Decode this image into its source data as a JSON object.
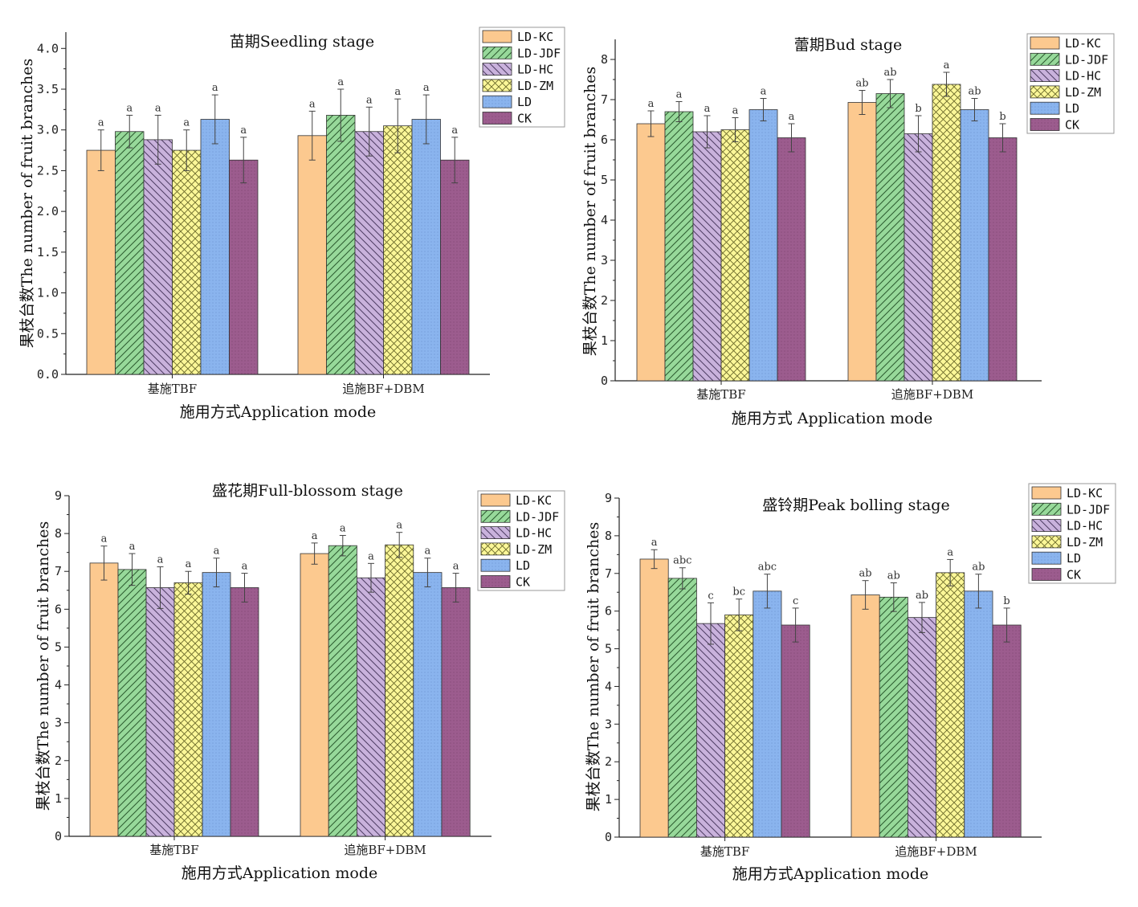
{
  "chart_data": [
    {
      "type": "bar",
      "title": "苗期Seedling stage",
      "xlabel": "施用方式Application mode",
      "ylabel": "果枝台数The number of fruit branches",
      "ylim": [
        0,
        4.2
      ],
      "yticks": [
        "0.0",
        "0.5",
        "1.0",
        "1.5",
        "2.0",
        "2.5",
        "3.0",
        "3.5",
        "4.0"
      ],
      "categories": [
        "基施TBF",
        "追施BF+DBM"
      ],
      "legend_position": "top-right",
      "series": [
        {
          "name": "LD-KC",
          "values": [
            2.75,
            2.93
          ],
          "errors": [
            0.25,
            0.3
          ],
          "labels": [
            "a",
            "a"
          ]
        },
        {
          "name": "LD-JDF",
          "values": [
            2.98,
            3.18
          ],
          "errors": [
            0.2,
            0.32
          ],
          "labels": [
            "a",
            "a"
          ]
        },
        {
          "name": "LD-HC",
          "values": [
            2.88,
            2.98
          ],
          "errors": [
            0.3,
            0.3
          ],
          "labels": [
            "a",
            "a"
          ]
        },
        {
          "name": "LD-ZM",
          "values": [
            2.75,
            3.05
          ],
          "errors": [
            0.25,
            0.33
          ],
          "labels": [
            "a",
            "a"
          ]
        },
        {
          "name": "LD",
          "values": [
            3.13,
            3.13
          ],
          "errors": [
            0.3,
            0.3
          ],
          "labels": [
            "a",
            "a"
          ]
        },
        {
          "name": "CK",
          "values": [
            2.63,
            2.63
          ],
          "errors": [
            0.28,
            0.28
          ],
          "labels": [
            "a",
            "a"
          ]
        }
      ]
    },
    {
      "type": "bar",
      "title": "蕾期Bud stage",
      "xlabel": "施用方式 Application mode",
      "ylabel": "果枝台数The number of fruit branches",
      "ylim": [
        0,
        8.5
      ],
      "yticks": [
        "0",
        "1",
        "2",
        "3",
        "4",
        "5",
        "6",
        "7",
        "8"
      ],
      "categories": [
        "基施TBF",
        "追施BF+DBM"
      ],
      "legend_position": "top-right",
      "series": [
        {
          "name": "LD-KC",
          "values": [
            6.4,
            6.93
          ],
          "errors": [
            0.32,
            0.3
          ],
          "labels": [
            "a",
            "ab"
          ]
        },
        {
          "name": "LD-JDF",
          "values": [
            6.7,
            7.15
          ],
          "errors": [
            0.25,
            0.35
          ],
          "labels": [
            "a",
            "ab"
          ]
        },
        {
          "name": "LD-HC",
          "values": [
            6.2,
            6.15
          ],
          "errors": [
            0.4,
            0.45
          ],
          "labels": [
            "a",
            "b"
          ]
        },
        {
          "name": "LD-ZM",
          "values": [
            6.25,
            7.38
          ],
          "errors": [
            0.3,
            0.3
          ],
          "labels": [
            "a",
            "a"
          ]
        },
        {
          "name": "LD",
          "values": [
            6.75,
            6.75
          ],
          "errors": [
            0.28,
            0.28
          ],
          "labels": [
            "a",
            "ab"
          ]
        },
        {
          "name": "CK",
          "values": [
            6.05,
            6.05
          ],
          "errors": [
            0.35,
            0.35
          ],
          "labels": [
            "a",
            "b"
          ]
        }
      ]
    },
    {
      "type": "bar",
      "title": "盛花期Full-blossom stage",
      "xlabel": "施用方式Application mode",
      "ylabel": "果枝台数The number of fruit branches",
      "ylim": [
        0,
        9
      ],
      "yticks": [
        "0",
        "1",
        "2",
        "3",
        "4",
        "5",
        "6",
        "7",
        "8",
        "9"
      ],
      "categories": [
        "基施TBF",
        "追施BF+DBM"
      ],
      "legend_position": "top-right",
      "series": [
        {
          "name": "LD-KC",
          "values": [
            7.22,
            7.47
          ],
          "errors": [
            0.45,
            0.28
          ],
          "labels": [
            "a",
            "a"
          ]
        },
        {
          "name": "LD-JDF",
          "values": [
            7.05,
            7.68
          ],
          "errors": [
            0.42,
            0.27
          ],
          "labels": [
            "a",
            "a"
          ]
        },
        {
          "name": "LD-HC",
          "values": [
            6.57,
            6.83
          ],
          "errors": [
            0.55,
            0.38
          ],
          "labels": [
            "a",
            "a"
          ]
        },
        {
          "name": "LD-ZM",
          "values": [
            6.7,
            7.7
          ],
          "errors": [
            0.3,
            0.33
          ],
          "labels": [
            "a",
            "a"
          ]
        },
        {
          "name": "LD",
          "values": [
            6.97,
            6.97
          ],
          "errors": [
            0.38,
            0.38
          ],
          "labels": [
            "a",
            "a"
          ]
        },
        {
          "name": "CK",
          "values": [
            6.57,
            6.57
          ],
          "errors": [
            0.38,
            0.38
          ],
          "labels": [
            "a",
            "a"
          ]
        }
      ]
    },
    {
      "type": "bar",
      "title": "盛铃期Peak bolling stage",
      "xlabel": "施用方式Application mode",
      "ylabel": "果枝台数The number of fruit branches",
      "ylim": [
        0,
        9
      ],
      "yticks": [
        "0",
        "1",
        "2",
        "3",
        "4",
        "5",
        "6",
        "7",
        "8",
        "9"
      ],
      "categories": [
        "基施TBF",
        "追施BF+DBM"
      ],
      "legend_position": "top-right",
      "series": [
        {
          "name": "LD-KC",
          "values": [
            7.38,
            6.43
          ],
          "errors": [
            0.25,
            0.38
          ],
          "labels": [
            "a",
            "ab"
          ]
        },
        {
          "name": "LD-JDF",
          "values": [
            6.87,
            6.37
          ],
          "errors": [
            0.28,
            0.38
          ],
          "labels": [
            "abc",
            "ab"
          ]
        },
        {
          "name": "LD-HC",
          "values": [
            5.67,
            5.83
          ],
          "errors": [
            0.55,
            0.4
          ],
          "labels": [
            "c",
            "ab"
          ]
        },
        {
          "name": "LD-ZM",
          "values": [
            5.9,
            7.02
          ],
          "errors": [
            0.42,
            0.35
          ],
          "labels": [
            "bc",
            "a"
          ]
        },
        {
          "name": "LD",
          "values": [
            6.53,
            6.53
          ],
          "errors": [
            0.45,
            0.45
          ],
          "labels": [
            "abc",
            "ab"
          ]
        },
        {
          "name": "CK",
          "values": [
            5.63,
            5.63
          ],
          "errors": [
            0.45,
            0.45
          ],
          "labels": [
            "c",
            "b"
          ]
        }
      ]
    }
  ],
  "colors": {
    "LD-KC": "#fcc98f",
    "LD-JDF": "#97d99a",
    "LD-HC": "#c9b2dc",
    "LD-ZM": "#fbf798",
    "LD": "#8ab4ee",
    "CK": "#9c5c8e"
  }
}
